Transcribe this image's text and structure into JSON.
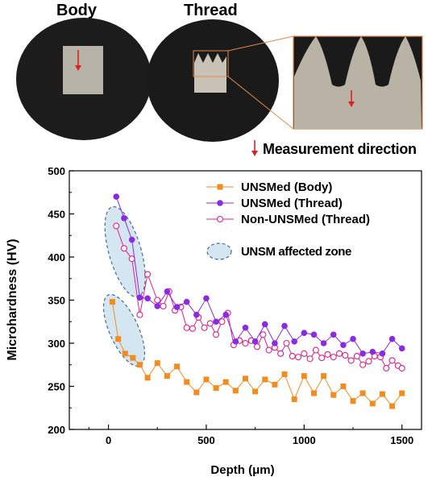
{
  "photos": {
    "body_label": "Body",
    "thread_label": "Thread",
    "measurement_direction": "Measurement direction"
  },
  "chart_data": {
    "type": "scatter",
    "xlabel": "Depth (μm)",
    "ylabel": "Microhardness (HV)",
    "xlim": [
      -200,
      1600
    ],
    "ylim": [
      200,
      500
    ],
    "xticks": [
      0,
      500,
      1000,
      1500
    ],
    "yticks": [
      200,
      250,
      300,
      350,
      400,
      450,
      500
    ],
    "grid": false,
    "legend_position": "top-right",
    "series": [
      {
        "name": "UNSMed (Body)",
        "color": "#f28c1e",
        "marker": "square-filled",
        "x": [
          20,
          50,
          85,
          125,
          160,
          200,
          250,
          300,
          350,
          400,
          450,
          500,
          550,
          600,
          650,
          700,
          750,
          800,
          850,
          900,
          950,
          1000,
          1050,
          1100,
          1150,
          1200,
          1250,
          1300,
          1350,
          1400,
          1450,
          1500
        ],
        "y": [
          348,
          305,
          288,
          283,
          275,
          260,
          277,
          262,
          273,
          255,
          243,
          258,
          248,
          255,
          245,
          259,
          244,
          258,
          252,
          264,
          235,
          262,
          242,
          262,
          240,
          250,
          233,
          242,
          230,
          241,
          227,
          242
        ]
      },
      {
        "name": "UNSMed (Thread)",
        "color": "#8a2be2",
        "marker": "circle-filled",
        "x": [
          40,
          80,
          120,
          160,
          200,
          250,
          300,
          350,
          400,
          450,
          500,
          550,
          600,
          650,
          700,
          750,
          800,
          850,
          900,
          950,
          1000,
          1050,
          1100,
          1150,
          1200,
          1250,
          1300,
          1350,
          1400,
          1450,
          1500
        ],
        "y": [
          470,
          445,
          420,
          353,
          352,
          343,
          360,
          342,
          348,
          333,
          352,
          325,
          333,
          302,
          318,
          302,
          322,
          300,
          320,
          302,
          312,
          310,
          300,
          310,
          298,
          305,
          288,
          290,
          288,
          305,
          294
        ]
      },
      {
        "name": "Non-UNSMed (Thread)",
        "color": "#e0208c",
        "marker": "circle-open",
        "x": [
          40,
          80,
          120,
          160,
          200,
          250,
          280,
          310,
          340,
          370,
          400,
          430,
          460,
          490,
          520,
          550,
          580,
          610,
          640,
          670,
          700,
          730,
          760,
          790,
          820,
          850,
          880,
          910,
          940,
          970,
          1000,
          1030,
          1060,
          1090,
          1120,
          1150,
          1180,
          1210,
          1240,
          1270,
          1300,
          1330,
          1360,
          1390,
          1420,
          1450,
          1480,
          1500
        ],
        "y": [
          436,
          410,
          398,
          333,
          380,
          350,
          343,
          360,
          338,
          342,
          318,
          317,
          330,
          318,
          323,
          310,
          325,
          335,
          298,
          303,
          300,
          303,
          296,
          310,
          292,
          295,
          288,
          300,
          285,
          284,
          288,
          282,
          292,
          283,
          287,
          284,
          288,
          286,
          280,
          285,
          275,
          279,
          285,
          284,
          271,
          280,
          274,
          271
        ]
      }
    ],
    "annotation_label": "UNSM affected zone"
  }
}
